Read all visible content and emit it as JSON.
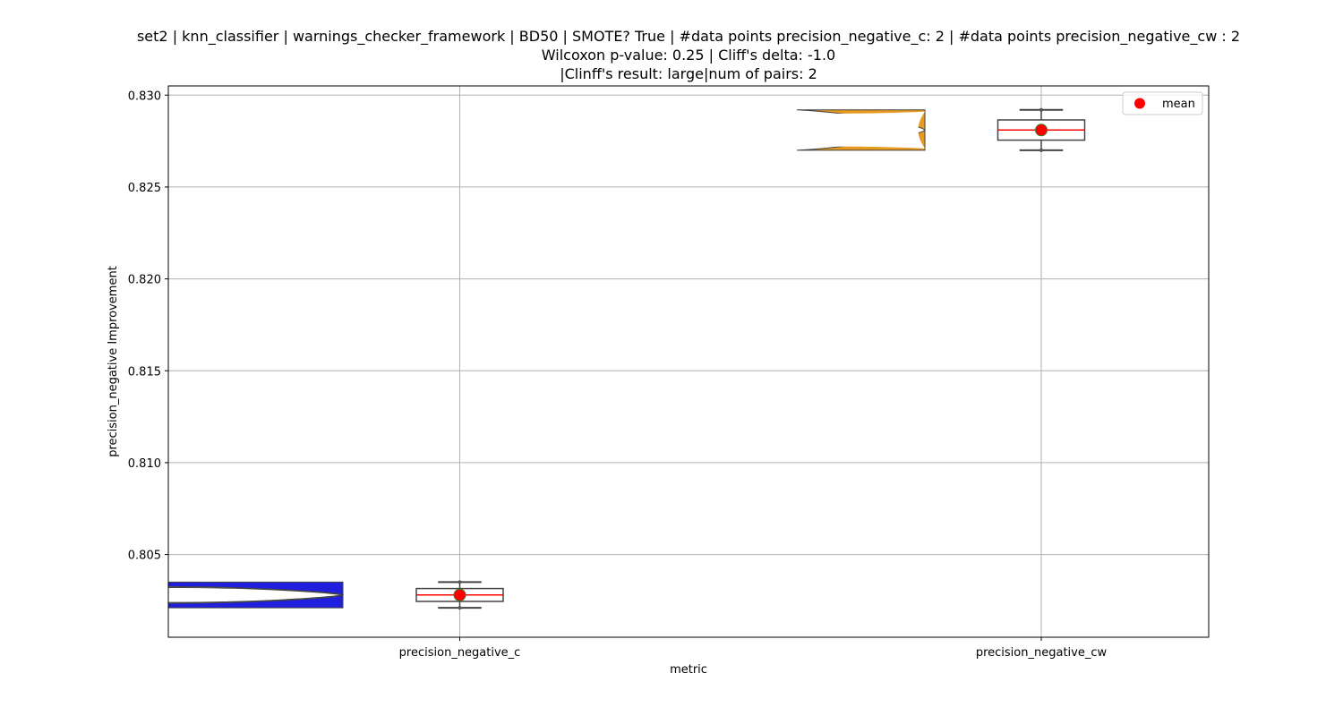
{
  "chart_data": {
    "type": "violin+box",
    "title_lines": [
      "set2 | knn_classifier | warnings_checker_framework | BD50 | SMOTE? True | #data points precision_negative_c: 2 | #data points precision_negative_cw : 2",
      "Wilcoxon p-value: 0.25 | Cliff's delta: -1.0",
      "|Clinff's result: large|num of pairs: 2"
    ],
    "xlabel": "metric",
    "ylabel": "precision_negative Improvement",
    "categories": [
      "precision_negative_c",
      "precision_negative_cw"
    ],
    "ylim": [
      0.8005,
      0.8305
    ],
    "yticks": [
      0.805,
      0.81,
      0.815,
      0.82,
      0.825,
      0.83
    ],
    "ytick_labels": [
      "0.805",
      "0.810",
      "0.815",
      "0.820",
      "0.825",
      "0.830"
    ],
    "grid": true,
    "legend": {
      "position": "top-right",
      "entries": [
        {
          "label": "mean",
          "marker": "circle",
          "color": "#ff0000"
        }
      ]
    },
    "series": [
      {
        "category": "precision_negative_c",
        "values": [
          0.8021,
          0.8035
        ],
        "mean": 0.8028,
        "median": 0.8028,
        "q1": 0.80245,
        "q3": 0.80315,
        "violin_color": "#1f1fdd"
      },
      {
        "category": "precision_negative_cw",
        "values": [
          0.827,
          0.8292
        ],
        "mean": 0.8281,
        "median": 0.8281,
        "q1": 0.82755,
        "q3": 0.82865,
        "violin_color": "#e89a1f"
      }
    ],
    "colors": {
      "median_line": "#ff0000",
      "mean_marker": "#ff0000",
      "box_edge": "#444444",
      "grid": "#b0b0b0"
    }
  }
}
